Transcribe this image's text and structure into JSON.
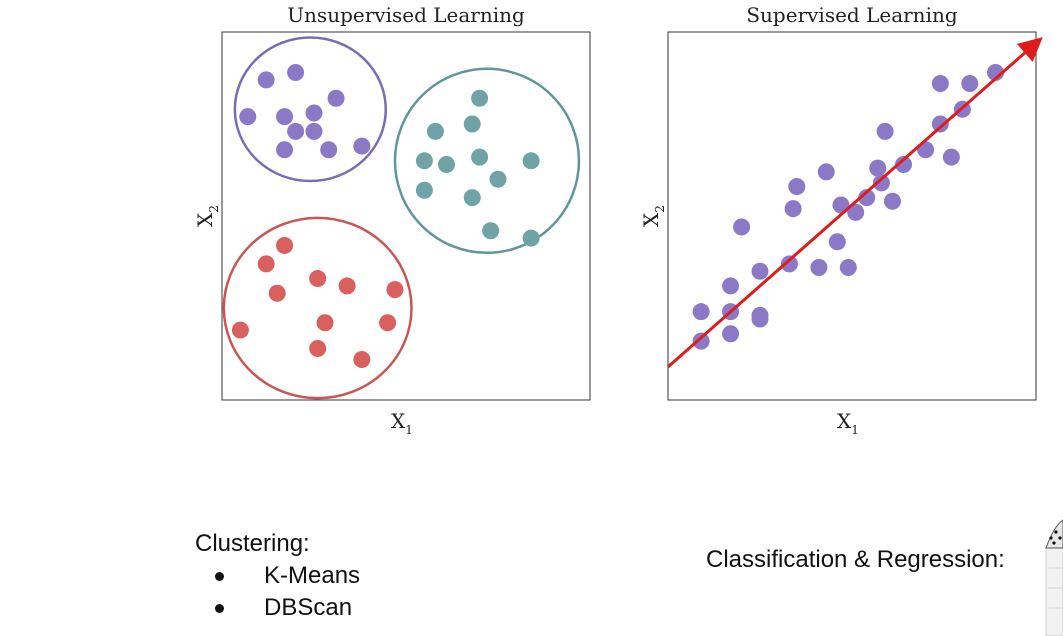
{
  "chart_data": [
    {
      "type": "scatter",
      "title": "Unsupervised Learning",
      "xlabel": "X",
      "xlabel_sub": "1",
      "ylabel": "X",
      "ylabel_sub": "2",
      "xlim": [
        0,
        10
      ],
      "ylim": [
        0,
        10
      ],
      "grid": false,
      "series": [
        {
          "color": "#8B79C8",
          "points": [
            [
              1.2,
              8.7
            ],
            [
              2.0,
              8.9
            ],
            [
              3.1,
              8.2
            ],
            [
              0.7,
              7.7
            ],
            [
              1.7,
              7.7
            ],
            [
              2.5,
              7.8
            ],
            [
              2.0,
              7.3
            ],
            [
              2.5,
              7.3
            ],
            [
              1.7,
              6.8
            ],
            [
              2.9,
              6.8
            ],
            [
              3.8,
              6.9
            ]
          ]
        },
        {
          "color": "#6FA3A6",
          "points": [
            [
              7.0,
              8.2
            ],
            [
              5.8,
              7.3
            ],
            [
              6.8,
              7.5
            ],
            [
              5.5,
              6.5
            ],
            [
              6.1,
              6.4
            ],
            [
              7.0,
              6.6
            ],
            [
              8.4,
              6.5
            ],
            [
              5.5,
              5.7
            ],
            [
              7.5,
              6.0
            ],
            [
              6.8,
              5.5
            ],
            [
              7.3,
              4.6
            ],
            [
              8.4,
              4.4
            ]
          ]
        },
        {
          "color": "#D9605E",
          "points": [
            [
              1.7,
              4.2
            ],
            [
              1.2,
              3.7
            ],
            [
              1.5,
              2.9
            ],
            [
              2.6,
              3.3
            ],
            [
              3.4,
              3.1
            ],
            [
              4.7,
              3.0
            ],
            [
              0.5,
              1.9
            ],
            [
              2.8,
              2.1
            ],
            [
              4.5,
              2.1
            ],
            [
              2.6,
              1.4
            ],
            [
              3.8,
              1.1
            ]
          ]
        }
      ],
      "clusters": [
        {
          "color": "#7B6BB5",
          "cx": 2.4,
          "cy": 7.9,
          "rx": 2.05,
          "ry": 1.95
        },
        {
          "color": "#5F9698",
          "cx": 7.2,
          "cy": 6.5,
          "rx": 2.5,
          "ry": 2.5
        },
        {
          "color": "#C85654",
          "cx": 2.6,
          "cy": 2.5,
          "rx": 2.55,
          "ry": 2.45
        }
      ]
    },
    {
      "type": "scatter",
      "title": "Supervised Learning",
      "xlabel": "X",
      "xlabel_sub": "1",
      "ylabel": "X",
      "ylabel_sub": "2",
      "xlim": [
        0,
        10
      ],
      "ylim": [
        0,
        10
      ],
      "grid": false,
      "series": [
        {
          "color": "#8B79C8",
          "points": [
            [
              0.9,
              2.4
            ],
            [
              0.9,
              1.6
            ],
            [
              1.7,
              3.1
            ],
            [
              1.7,
              2.4
            ],
            [
              1.7,
              1.8
            ],
            [
              2.5,
              3.5
            ],
            [
              2.5,
              2.3
            ],
            [
              2.5,
              2.2
            ],
            [
              2.0,
              4.7
            ],
            [
              3.3,
              3.7
            ],
            [
              3.4,
              5.2
            ],
            [
              3.5,
              5.8
            ],
            [
              4.1,
              3.6
            ],
            [
              4.3,
              6.2
            ],
            [
              4.6,
              4.3
            ],
            [
              4.7,
              5.3
            ],
            [
              4.9,
              3.6
            ],
            [
              5.1,
              5.1
            ],
            [
              5.4,
              5.5
            ],
            [
              5.7,
              6.3
            ],
            [
              5.8,
              5.9
            ],
            [
              5.9,
              7.3
            ],
            [
              6.1,
              5.4
            ],
            [
              6.4,
              6.4
            ],
            [
              7.0,
              6.8
            ],
            [
              7.4,
              7.5
            ],
            [
              7.4,
              8.6
            ],
            [
              7.7,
              6.6
            ],
            [
              8.0,
              7.9
            ],
            [
              8.2,
              8.6
            ],
            [
              8.9,
              8.9
            ]
          ]
        }
      ],
      "arrow": {
        "from": [
          0,
          0.9
        ],
        "to": [
          10,
          9.7
        ],
        "color": "#E01B1B"
      }
    }
  ],
  "notes": {
    "clustering_title": "Clustering:",
    "clustering_items": [
      "K-Means",
      "DBScan"
    ],
    "classification_title": "Classification & Regression:"
  }
}
